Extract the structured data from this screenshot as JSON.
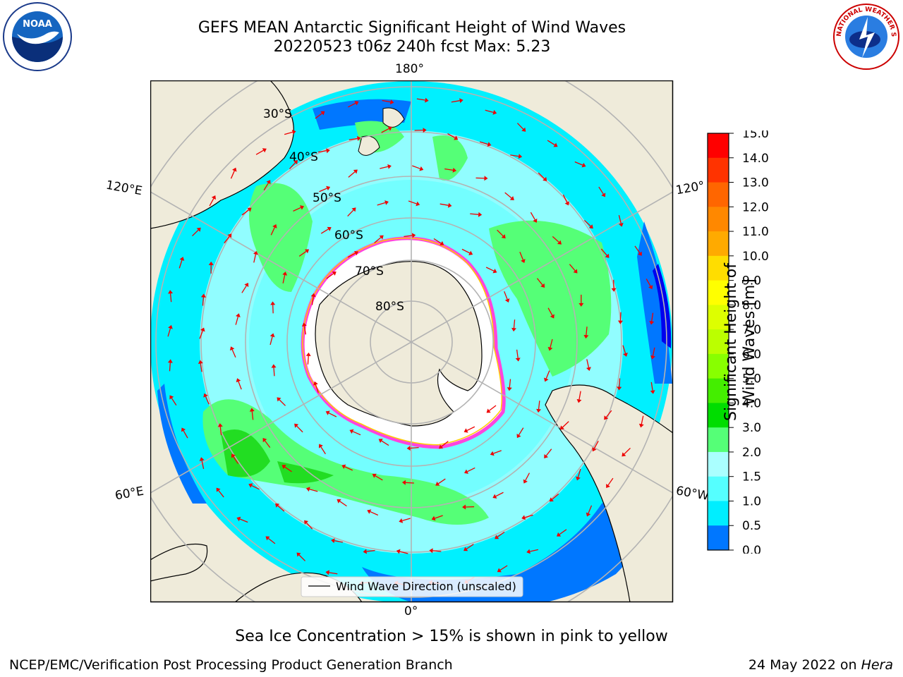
{
  "title_line1": "GEFS MEAN Antarctic Significant Height of Wind Waves",
  "title_line2": "20220523 t06z 240h fcst   Max: 5.23",
  "map": {
    "lon_labels": {
      "top": "180°",
      "bottom": "0°",
      "left_upper": "120°E",
      "left_lower": "60°E",
      "right_upper": "120°",
      "right_lower": "60°W"
    },
    "lat_labels": [
      "30°S",
      "40°S",
      "50°S",
      "60°S",
      "70°S",
      "80°S"
    ],
    "legend_label": "Wind Wave Direction (unscaled)"
  },
  "colorbar": {
    "label": "Significant Height of Wind Waves [m]",
    "ticks": [
      "15.0",
      "14.0",
      "13.0",
      "12.0",
      "11.0",
      "10.0",
      "9.0",
      "8.0",
      "7.0",
      "6.0",
      "5.0",
      "4.0",
      "3.0",
      "2.0",
      "1.5",
      "1.0",
      "0.5",
      "0.0"
    ],
    "colors": [
      "#ff0000",
      "#ff3300",
      "#ff6600",
      "#ff8800",
      "#ffaa00",
      "#ffdd00",
      "#ffff00",
      "#ddff00",
      "#bbff00",
      "#88ff00",
      "#44ee00",
      "#00dd00",
      "#55ff77",
      "#aaffff",
      "#55ffff",
      "#00eeff",
      "#0077ff",
      "#0000ff"
    ]
  },
  "sea_ice_note": "Sea Ice Concentration > 15% is shown in pink to yellow",
  "footer_left": "NCEP/EMC/Verification Post Processing Product Generation Branch",
  "footer_date": "24 May 2022 on",
  "footer_machine": "Hera",
  "logos": {
    "left": "NOAA",
    "right": "NATIONAL WEATHER SERVICE"
  }
}
